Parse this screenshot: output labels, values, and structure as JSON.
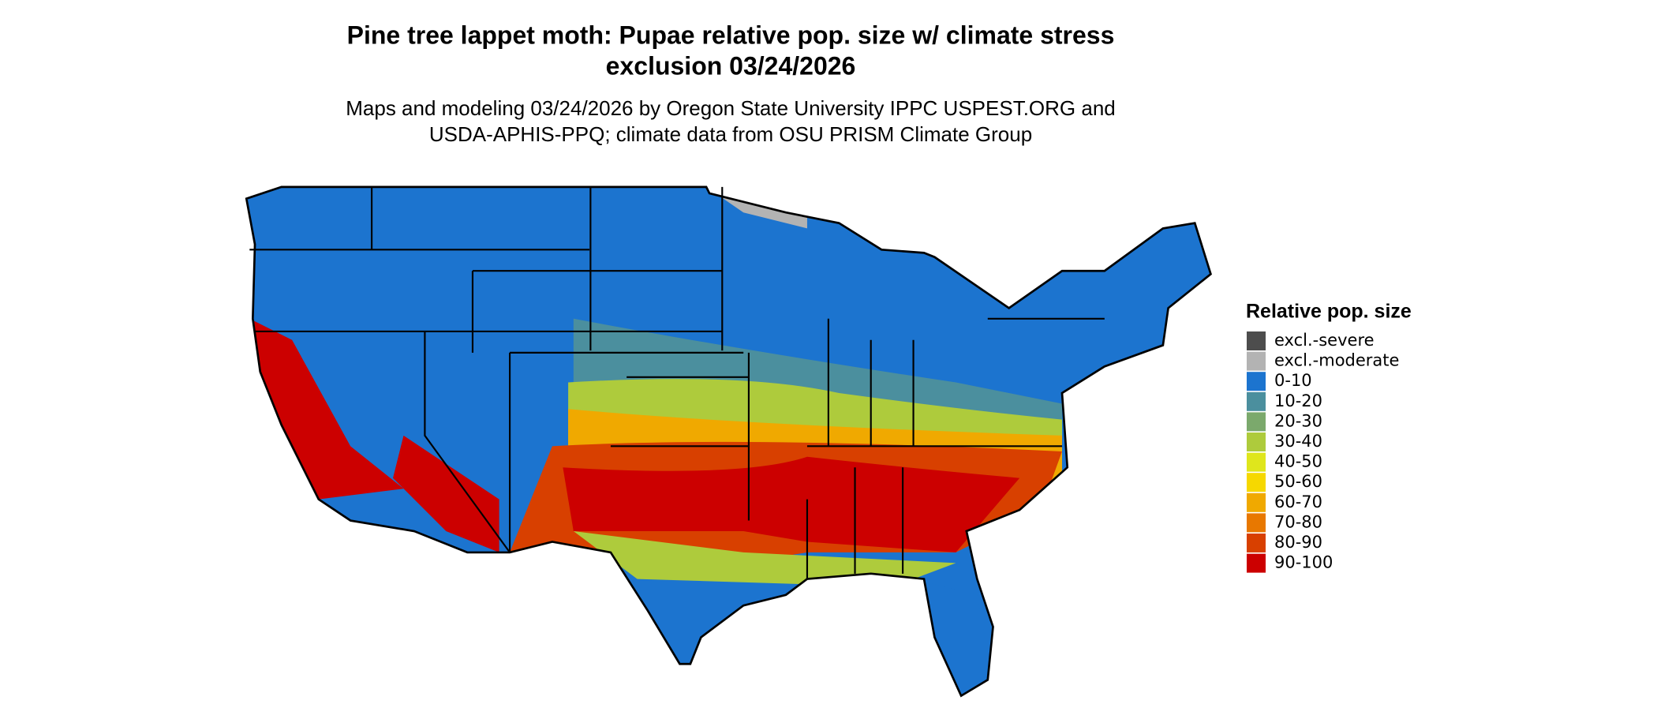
{
  "header": {
    "title": [
      "Pine tree lappet moth: Pupae relative pop. size w/ climate stress",
      "exclusion 03/24/2026"
    ],
    "subtitle": [
      "Maps and modeling 03/24/2026 by Oregon State University IPPC USPEST.ORG and",
      "USDA-APHIS-PPQ; climate data from OSU PRISM Climate Group"
    ]
  },
  "legend": {
    "title": "Relative pop. size",
    "items": [
      {
        "label": "excl.-severe",
        "color": "#4d4d4d"
      },
      {
        "label": "excl.-moderate",
        "color": "#b3b3b3"
      },
      {
        "label": "0-10",
        "color": "#1c74cf"
      },
      {
        "label": "10-20",
        "color": "#4b8f9e"
      },
      {
        "label": "20-30",
        "color": "#7ba96c"
      },
      {
        "label": "30-40",
        "color": "#aecb3c"
      },
      {
        "label": "40-50",
        "color": "#dfe61c"
      },
      {
        "label": "50-60",
        "color": "#f6d800"
      },
      {
        "label": "60-70",
        "color": "#f0a900"
      },
      {
        "label": "70-80",
        "color": "#e87800"
      },
      {
        "label": "80-90",
        "color": "#d84000"
      },
      {
        "label": "90-100",
        "color": "#cc0000"
      }
    ]
  }
}
